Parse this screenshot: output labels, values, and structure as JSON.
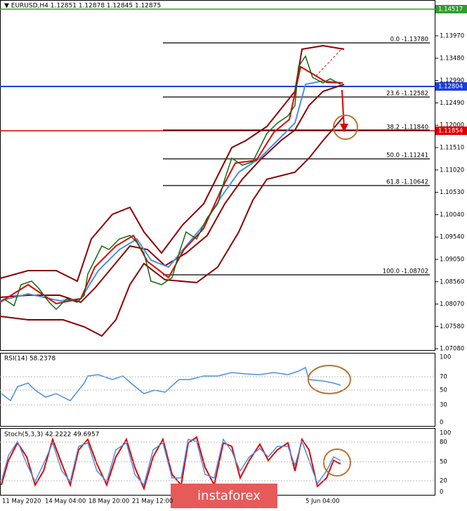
{
  "header": {
    "title": "▼ EURUSD,H4  1.12851 1.12878 1.12845 1.12875"
  },
  "price_axis": [
    "1.13970",
    "1.13480",
    "1.12990",
    "1.12490",
    "1.12000",
    "1.11510",
    "1.11020",
    "1.10530",
    "1.10040",
    "1.09540",
    "1.09050",
    "1.08560",
    "1.08070",
    "1.07580",
    "1.07080"
  ],
  "price_tags": [
    "1.14517",
    "1.12804",
    "1.11854"
  ],
  "fibonacci": [
    "0.0 -1.13780",
    "23.6 -1.12582",
    "38.2 -1.11840",
    "50.0 -1.11241",
    "61.8 -1.10642",
    "100.0 -1.08702"
  ],
  "rsi": {
    "label": "RSI(14) 58.2378",
    "axis": [
      "100",
      "70",
      "50",
      "30",
      "0"
    ]
  },
  "stoch": {
    "label": "Stoch(5,3,3) 42.2222 49.6957",
    "axis": [
      "100",
      "80",
      "50",
      "20",
      "0"
    ]
  },
  "time_axis": [
    "11 May 2020",
    "14 May 04:00",
    "18 May 20:00",
    "21 May 12:00",
    "5 Jun 04:00"
  ],
  "watermark": "instaforex"
}
